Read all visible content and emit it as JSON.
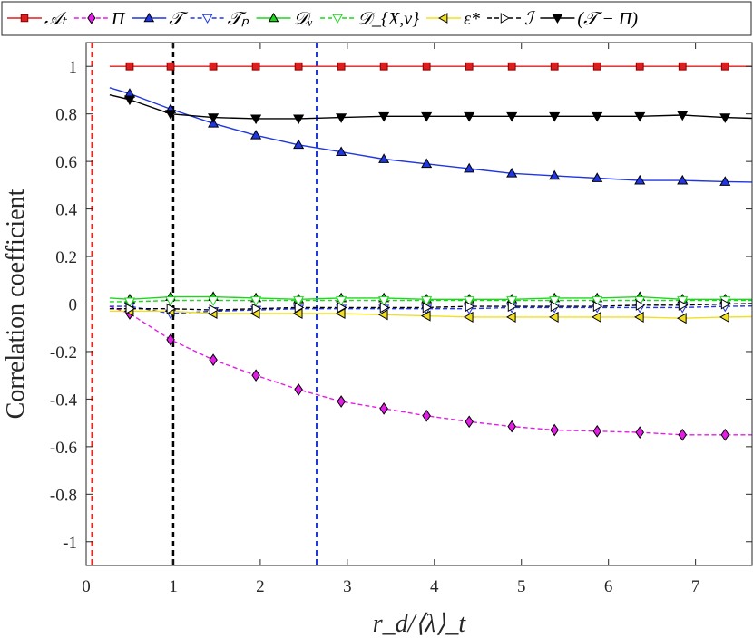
{
  "chart_data": {
    "type": "line",
    "xlabel": "r_d/⟨λ⟩_t",
    "ylabel": "Correlation coefficient",
    "xlim": [
      0,
      7.65
    ],
    "ylim": [
      -1.1,
      1.1
    ],
    "xticks": [
      "0",
      "1",
      "2",
      "3",
      "4",
      "5",
      "6",
      "7"
    ],
    "xtick_values": [
      0,
      1,
      2,
      3,
      4,
      5,
      6,
      7
    ],
    "yticks": [
      "1",
      "0.8",
      "0.6",
      "0.4",
      "0.2",
      "0",
      "-0.2",
      "-0.4",
      "-0.6",
      "-0.8",
      "-1"
    ],
    "ytick_values": [
      1,
      0.8,
      0.6,
      0.4,
      0.2,
      0,
      -0.2,
      -0.4,
      -0.6,
      -0.8,
      -1
    ],
    "grid": false,
    "legend_position": "top",
    "vertical_lines": [
      {
        "x": 0.07,
        "color": "#e8271f"
      },
      {
        "x": 1.0,
        "color": "#000000"
      },
      {
        "x": 2.65,
        "color": "#1f36e0"
      }
    ],
    "series": [
      {
        "name": "𝒜ₜ",
        "color": "#dd1e1e",
        "marker": "square",
        "fill": "#dd1e1e",
        "dash": false,
        "x": [
          0.5,
          0.97,
          1.46,
          1.95,
          2.44,
          2.93,
          3.42,
          3.91,
          4.4,
          4.89,
          5.38,
          5.87,
          6.36,
          6.85,
          7.34
        ],
        "values": [
          1,
          1,
          1,
          1,
          1,
          1,
          1,
          1,
          1,
          1,
          1,
          1,
          1,
          1,
          1
        ]
      },
      {
        "name": "Π",
        "color": "#e21ee5",
        "marker": "diamond",
        "fill": "#e21ee5",
        "dash": true,
        "x": [
          0.5,
          0.97,
          1.46,
          1.95,
          2.44,
          2.93,
          3.42,
          3.91,
          4.4,
          4.89,
          5.38,
          5.87,
          6.36,
          6.85,
          7.34
        ],
        "values": [
          -0.04,
          -0.15,
          -0.235,
          -0.3,
          -0.36,
          -0.41,
          -0.44,
          -0.47,
          -0.495,
          -0.515,
          -0.53,
          -0.535,
          -0.54,
          -0.55,
          -0.55
        ]
      },
      {
        "name": "𝒯",
        "color": "#1f36e0",
        "marker": "triangle-up",
        "fill": "#1f36e0",
        "dash": false,
        "x": [
          0.5,
          0.97,
          1.46,
          1.95,
          2.44,
          2.93,
          3.42,
          3.91,
          4.4,
          4.89,
          5.38,
          5.87,
          6.36,
          6.85,
          7.34
        ],
        "values": [
          0.885,
          0.82,
          0.76,
          0.71,
          0.67,
          0.64,
          0.61,
          0.59,
          0.57,
          0.55,
          0.54,
          0.53,
          0.52,
          0.52,
          0.515
        ]
      },
      {
        "name": "𝒯ₚ",
        "color": "#1f36e0",
        "marker": "triangle-down",
        "fill": "#ffffff",
        "dash": true,
        "x": [
          0.5,
          0.97,
          1.46,
          1.95,
          2.44,
          2.93,
          3.42,
          3.91,
          4.4,
          4.89,
          5.38,
          5.87,
          6.36,
          6.85,
          7.34
        ],
        "values": [
          -0.01,
          -0.04,
          -0.03,
          -0.025,
          -0.02,
          -0.02,
          -0.02,
          -0.02,
          -0.02,
          -0.015,
          -0.015,
          -0.015,
          -0.015,
          -0.015,
          -0.01
        ]
      },
      {
        "name": "𝒟ᵥ",
        "color": "#1fd61f",
        "marker": "triangle-up",
        "fill": "#1fd61f",
        "dash": false,
        "x": [
          0.5,
          0.97,
          1.46,
          1.95,
          2.44,
          2.93,
          3.42,
          3.91,
          4.4,
          4.89,
          5.38,
          5.87,
          6.36,
          6.85,
          7.34
        ],
        "values": [
          0.02,
          0.03,
          0.03,
          0.025,
          0.02,
          0.025,
          0.025,
          0.02,
          0.02,
          0.02,
          0.025,
          0.025,
          0.03,
          0.02,
          0.02
        ]
      },
      {
        "name": "𝒟_{X,ν}",
        "color": "#1fd61f",
        "marker": "triangle-down",
        "fill": "#ffffff",
        "dash": true,
        "x": [
          0.5,
          0.97,
          1.46,
          1.95,
          2.44,
          2.93,
          3.42,
          3.91,
          4.4,
          4.89,
          5.38,
          5.87,
          6.36,
          6.85,
          7.34
        ],
        "values": [
          0.01,
          0.015,
          0.015,
          0.015,
          0.015,
          0.015,
          0.015,
          0.015,
          0.015,
          0.015,
          0.015,
          0.015,
          0.015,
          0.015,
          0.015
        ]
      },
      {
        "name": "ε*",
        "color": "#f0e020",
        "marker": "triangle-left",
        "fill": "#f0e020",
        "dash": false,
        "x": [
          0.5,
          0.97,
          1.46,
          1.95,
          2.44,
          2.93,
          3.42,
          3.91,
          4.4,
          4.89,
          5.38,
          5.87,
          6.36,
          6.85,
          7.34
        ],
        "values": [
          -0.03,
          -0.03,
          -0.04,
          -0.04,
          -0.04,
          -0.04,
          -0.045,
          -0.05,
          -0.055,
          -0.055,
          -0.055,
          -0.055,
          -0.055,
          -0.06,
          -0.055
        ]
      },
      {
        "name": "ℐ",
        "color": "#000000",
        "marker": "triangle-right",
        "fill": "#ffffff",
        "dash": true,
        "x": [
          0.5,
          0.97,
          1.46,
          1.95,
          2.44,
          2.93,
          3.42,
          3.91,
          4.4,
          4.89,
          5.38,
          5.87,
          6.36,
          6.85,
          7.34
        ],
        "values": [
          -0.02,
          -0.02,
          -0.025,
          -0.02,
          -0.015,
          -0.015,
          -0.015,
          -0.015,
          -0.01,
          -0.01,
          -0.01,
          -0.01,
          -0.005,
          -0.005,
          0
        ]
      },
      {
        "name": "(𝒯 − Π)",
        "color": "#000000",
        "marker": "triangle-down",
        "fill": "#000000",
        "dash": false,
        "x": [
          0.5,
          0.97,
          1.46,
          1.95,
          2.44,
          2.93,
          3.42,
          3.91,
          4.4,
          4.89,
          5.38,
          5.87,
          6.36,
          6.85,
          7.34
        ],
        "values": [
          0.86,
          0.8,
          0.785,
          0.78,
          0.78,
          0.785,
          0.79,
          0.79,
          0.79,
          0.79,
          0.79,
          0.79,
          0.79,
          0.795,
          0.785
        ]
      }
    ],
    "line_start": {
      "x": 0.27,
      "values": {
        "𝒯": 0.91,
        "(𝒯 − Π)": 0.88,
        "Π": -0.01,
        "𝒟ᵥ": 0.025,
        "ε*": -0.03
      }
    }
  },
  "legend": {
    "items": [
      {
        "label": "𝒜ₜ"
      },
      {
        "label": "Π"
      },
      {
        "label": "𝒯"
      },
      {
        "label": "𝒯ₚ"
      },
      {
        "label": "𝒟ᵥ"
      },
      {
        "label": "𝒟_{X,ν}"
      },
      {
        "label": "ε*"
      },
      {
        "label": "ℐ"
      },
      {
        "label": "(𝒯 − Π)"
      }
    ]
  },
  "axes": {
    "xlabel": "r_d/⟨λ⟩_t",
    "ylabel": "Correlation coefficient"
  }
}
